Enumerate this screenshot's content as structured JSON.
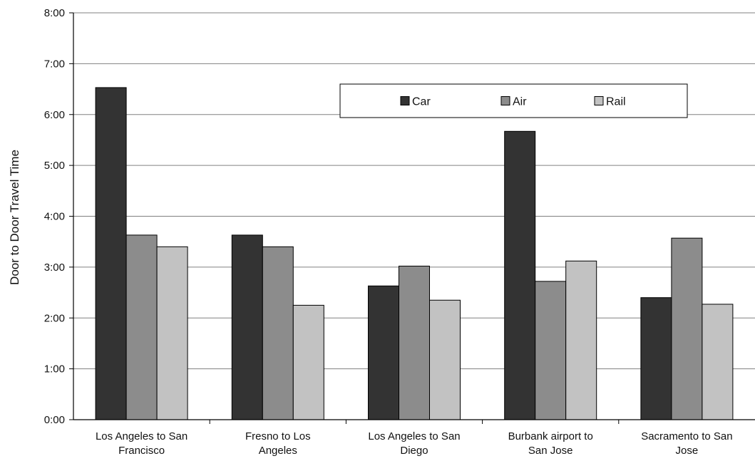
{
  "chart_data": {
    "type": "bar",
    "title": "",
    "xlabel": "",
    "ylabel": "Door to Door Travel Time",
    "y_unit": "hours",
    "ylim": [
      0,
      8
    ],
    "yticks": [
      0,
      1,
      2,
      3,
      4,
      5,
      6,
      7,
      8
    ],
    "ytick_labels": [
      "0:00",
      "1:00",
      "2:00",
      "3:00",
      "4:00",
      "5:00",
      "6:00",
      "7:00",
      "8:00"
    ],
    "categories": [
      [
        "Los Angeles to San",
        "Francisco"
      ],
      [
        "Fresno to Los",
        "Angeles"
      ],
      [
        "Los Angeles to San",
        "Diego"
      ],
      [
        "Burbank airport to",
        "San Jose"
      ],
      [
        "Sacramento to San",
        "Jose"
      ]
    ],
    "series": [
      {
        "name": "Car",
        "color": "#333333",
        "values": [
          6.53,
          3.63,
          2.63,
          5.67,
          2.4
        ]
      },
      {
        "name": "Air",
        "color": "#8c8c8c",
        "values": [
          3.63,
          3.4,
          3.02,
          2.72,
          3.57
        ]
      },
      {
        "name": "Rail",
        "color": "#c2c2c2",
        "values": [
          3.4,
          2.25,
          2.35,
          3.12,
          2.27
        ]
      }
    ],
    "grid": true,
    "legend_position": "top-right"
  }
}
